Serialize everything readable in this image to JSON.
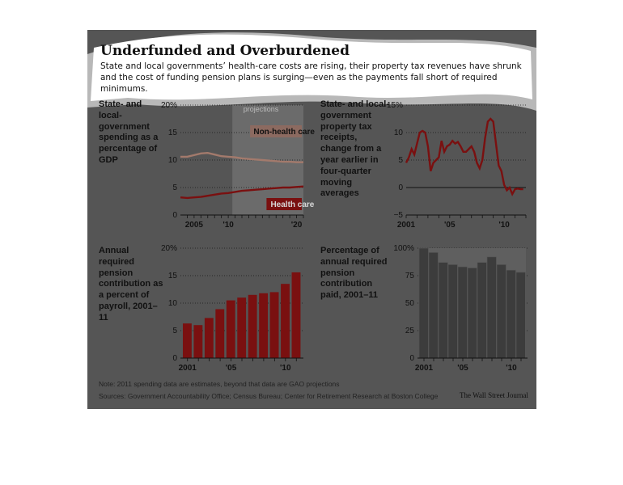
{
  "title": "Underfunded and Overburdened",
  "subtitle": "State and local governments’ health-care costs are rising, their property tax revenues have shrunk and the cost of funding pension plans is surging—even as the payments fall short of required minimums.",
  "note": "Note: 2011 spending data are estimates, beyond that data are GAO projections",
  "sources": "Sources: Government Accountability Office; Census Bureau; Center for Retirement Research at Boston College",
  "credit": "The Wall Street Journal",
  "colors": {
    "panel": "#555555",
    "red": "#7a1010",
    "nonhealth": "#a37a6c",
    "bar_gray": "#3c3c3c",
    "highlight": "#d9d9d9"
  },
  "chart_data": [
    {
      "type": "line",
      "description": "State- and local-government spending as a percentage of GDP",
      "annotation": "projections",
      "xticks": [
        "2005",
        "'10",
        "'20"
      ],
      "yticks": [
        "0",
        "5",
        "10",
        "15",
        "20%"
      ],
      "xlim": [
        2003,
        2021
      ],
      "ylim": [
        0,
        20
      ],
      "series": [
        {
          "name": "Non-health care",
          "x": [
            2003,
            2004,
            2005,
            2006,
            2007,
            2008,
            2009,
            2010,
            2011,
            2012,
            2013,
            2014,
            2015,
            2016,
            2017,
            2018,
            2019,
            2020,
            2021
          ],
          "values": [
            10.6,
            10.6,
            10.9,
            11.2,
            11.3,
            11.0,
            10.7,
            10.6,
            10.5,
            10.3,
            10.2,
            10.1,
            10.0,
            9.9,
            9.8,
            9.7,
            9.7,
            9.6,
            9.6
          ]
        },
        {
          "name": "Health care",
          "x": [
            2003,
            2004,
            2005,
            2006,
            2007,
            2008,
            2009,
            2010,
            2011,
            2012,
            2013,
            2014,
            2015,
            2016,
            2017,
            2018,
            2019,
            2020,
            2021
          ],
          "values": [
            3.2,
            3.1,
            3.2,
            3.3,
            3.5,
            3.7,
            3.9,
            4.0,
            4.2,
            4.4,
            4.5,
            4.6,
            4.7,
            4.8,
            4.9,
            5.0,
            5.0,
            5.1,
            5.2
          ]
        }
      ]
    },
    {
      "type": "line",
      "description": "State- and local-government property tax receipts, change from a year earlier in four-quarter moving averages",
      "xticks": [
        "2001",
        "'05",
        "'10"
      ],
      "yticks": [
        "−5",
        "0",
        "5",
        "10",
        "15%"
      ],
      "xlim": [
        2001,
        2012
      ],
      "ylim": [
        -5,
        15
      ],
      "series": [
        {
          "name": "",
          "x": [
            2001.0,
            2001.25,
            2001.5,
            2001.75,
            2002.0,
            2002.25,
            2002.5,
            2002.75,
            2003.0,
            2003.25,
            2003.5,
            2003.75,
            2004.0,
            2004.25,
            2004.5,
            2004.75,
            2005.0,
            2005.25,
            2005.5,
            2005.75,
            2006.0,
            2006.25,
            2006.5,
            2006.75,
            2007.0,
            2007.25,
            2007.5,
            2007.75,
            2008.0,
            2008.25,
            2008.5,
            2008.75,
            2009.0,
            2009.25,
            2009.5,
            2009.75,
            2010.0,
            2010.25,
            2010.5,
            2010.75,
            2011.0,
            2011.25,
            2011.5,
            2011.75
          ],
          "values": [
            4.5,
            5.5,
            7.0,
            6.0,
            8.0,
            10.0,
            10.3,
            10.0,
            7.5,
            3.0,
            4.5,
            5.0,
            5.5,
            8.5,
            6.5,
            7.5,
            7.8,
            8.5,
            8.0,
            8.3,
            7.5,
            6.5,
            6.5,
            7.0,
            7.5,
            6.5,
            4.5,
            3.5,
            5.0,
            9.0,
            12.0,
            12.5,
            12.0,
            8.0,
            4.0,
            3.0,
            0.5,
            -0.5,
            0.0,
            -1.2,
            -0.3,
            -0.2,
            -0.3,
            -0.3
          ]
        }
      ]
    },
    {
      "type": "bar",
      "description": "Annual required pension contribution as a percent of payroll, 2001–11",
      "categories": [
        "2001",
        "2002",
        "2003",
        "2004",
        "2005",
        "2006",
        "2007",
        "2008",
        "2009",
        "2010",
        "2011"
      ],
      "xticks": [
        "2001",
        "'05",
        "'10"
      ],
      "yticks": [
        "0",
        "5",
        "10",
        "15",
        "20%"
      ],
      "ylim": [
        0,
        20
      ],
      "values": [
        6.3,
        6.0,
        7.3,
        8.9,
        10.5,
        11.0,
        11.5,
        11.8,
        12.0,
        13.5,
        15.6
      ]
    },
    {
      "type": "bar",
      "description": "Percentage of annual required pension contribution paid, 2001–11",
      "categories": [
        "2001",
        "2002",
        "2003",
        "2004",
        "2005",
        "2006",
        "2007",
        "2008",
        "2009",
        "2010",
        "2011"
      ],
      "xticks": [
        "2001",
        "'05",
        "'10"
      ],
      "yticks": [
        "0",
        "25",
        "50",
        "75",
        "100%"
      ],
      "ylim": [
        0,
        100
      ],
      "values": [
        100,
        96,
        87,
        85,
        83,
        82,
        87,
        92,
        85,
        80,
        78
      ]
    }
  ]
}
